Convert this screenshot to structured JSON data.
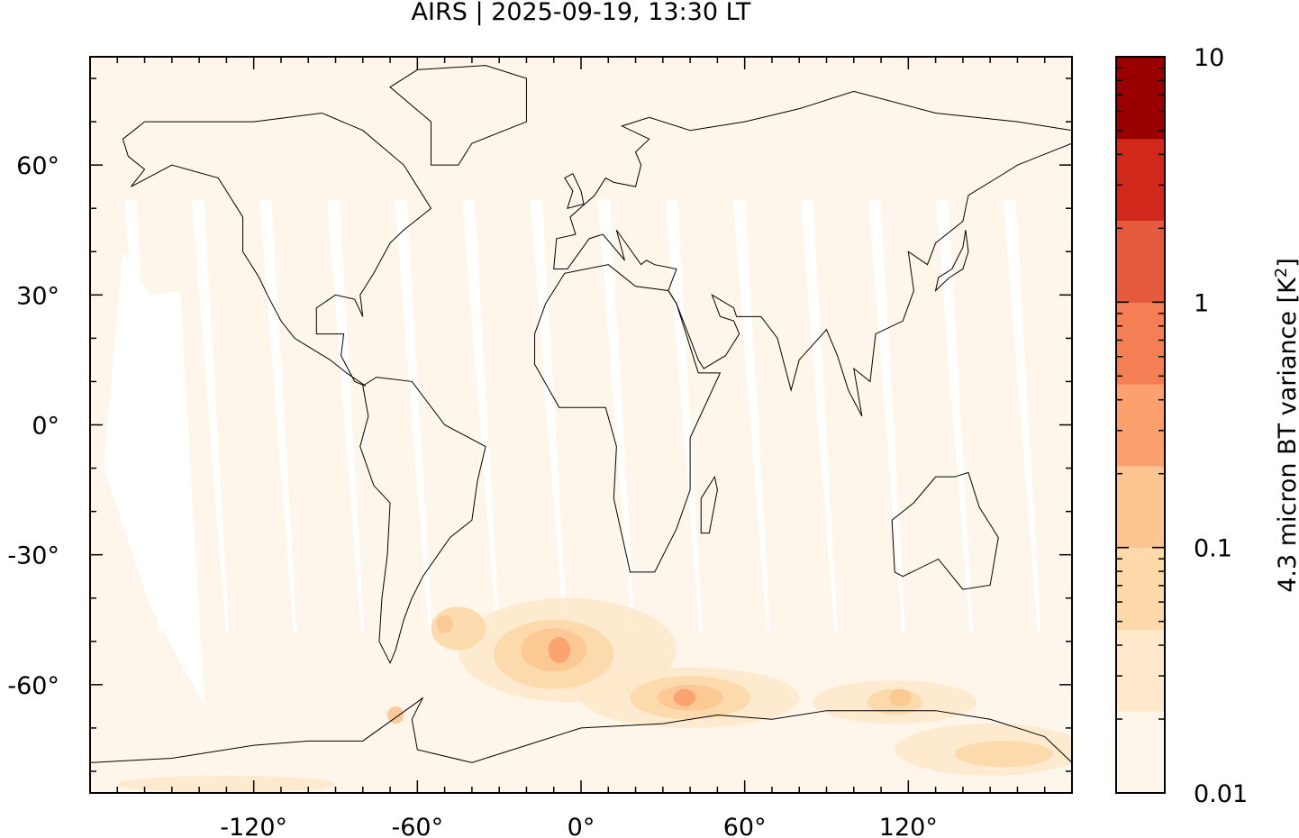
{
  "title": "AIRS | 2025-09-19, 13:30 LT",
  "chart_data": {
    "type": "heatmap",
    "projection": "equirectangular",
    "title": "AIRS | 2025-09-19, 13:30 LT",
    "xlim": [
      -180,
      180
    ],
    "ylim": [
      -85,
      85
    ],
    "x_ticks": [
      -120,
      -60,
      0,
      60,
      120
    ],
    "x_tick_labels": [
      "-120°",
      "-60°",
      "0°",
      "60°",
      "120°"
    ],
    "y_ticks": [
      60,
      30,
      0,
      -30,
      -60
    ],
    "y_tick_labels": [
      "60°",
      "30°",
      "0°",
      "-30°",
      "-60°"
    ],
    "colorbar": {
      "label": "4.3 micron BT variance [K²]",
      "label_main": "4.3 micron BT variance [K",
      "label_sup": "2",
      "label_end": "]",
      "scale": "log",
      "range": [
        0.01,
        10
      ],
      "tick_labels": [
        "10",
        "1",
        "0.1",
        "0.01"
      ],
      "tick_values": [
        10,
        1,
        0.1,
        0.01
      ],
      "colors": [
        "#fef6ea",
        "#fee9cb",
        "#fdd8a8",
        "#fcc590",
        "#fca06e",
        "#f57f55",
        "#e65a3e",
        "#d0291c",
        "#990000"
      ]
    },
    "no_data_color": "#ffffff",
    "coastline_color": "#000000"
  }
}
